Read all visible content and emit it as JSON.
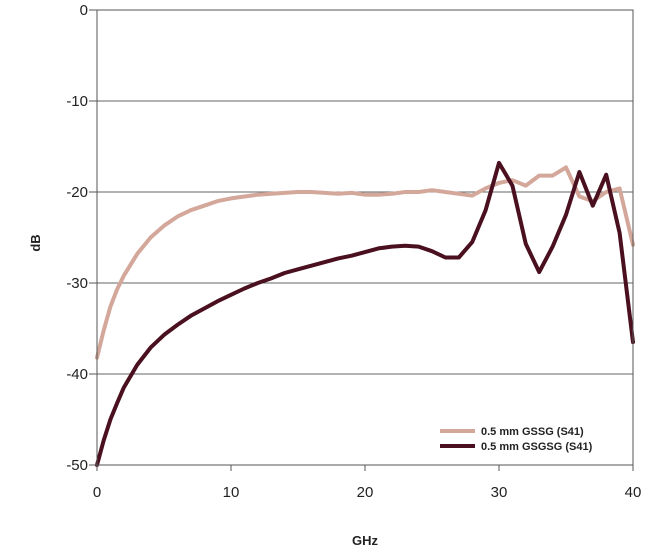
{
  "chart_data": {
    "type": "line",
    "title": "",
    "xlabel": "GHz",
    "ylabel": "dB",
    "xlim": [
      0,
      40
    ],
    "ylim": [
      -50,
      0
    ],
    "xticks": [
      0,
      10,
      20,
      30,
      40
    ],
    "yticks": [
      0,
      -10,
      -20,
      -30,
      -40,
      -50
    ],
    "xtick_labels": [
      "0",
      "10",
      "20",
      "30",
      "40"
    ],
    "ytick_labels": [
      "0",
      "-10",
      "-20",
      "-30",
      "-40",
      "-50"
    ],
    "grid": "horizontal",
    "legend_position": "bottom-right",
    "series": [
      {
        "name": "0.5 mm GSSG (S41)",
        "color": "#d4a79b",
        "x": [
          0,
          0.5,
          1,
          1.5,
          2,
          3,
          4,
          5,
          6,
          7,
          8,
          9,
          10,
          11,
          12,
          13,
          14,
          15,
          16,
          17,
          18,
          19,
          20,
          21,
          22,
          23,
          24,
          25,
          26,
          27,
          28,
          29,
          30,
          31,
          32,
          33,
          34,
          35,
          36,
          37,
          38,
          39,
          40
        ],
        "y": [
          -38.2,
          -35.2,
          -32.6,
          -30.7,
          -29.2,
          -26.8,
          -25.0,
          -23.7,
          -22.7,
          -22.0,
          -21.5,
          -21.0,
          -20.7,
          -20.5,
          -20.3,
          -20.2,
          -20.1,
          -20.0,
          -20.0,
          -20.1,
          -20.2,
          -20.1,
          -20.3,
          -20.3,
          -20.2,
          -20.0,
          -20.0,
          -19.8,
          -20.0,
          -20.2,
          -20.4,
          -19.6,
          -19.0,
          -18.7,
          -19.3,
          -18.2,
          -18.2,
          -17.3,
          -20.5,
          -21.0,
          -20.0,
          -19.6,
          -25.8
        ]
      },
      {
        "name": "0.5 mm GSGSG (S41)",
        "color": "#4a1020",
        "x": [
          0,
          0.5,
          1,
          1.5,
          2,
          3,
          4,
          5,
          6,
          7,
          8,
          9,
          10,
          11,
          12,
          13,
          14,
          15,
          16,
          17,
          18,
          19,
          20,
          21,
          22,
          23,
          24,
          25,
          26,
          27,
          28,
          29,
          30,
          31,
          32,
          33,
          34,
          35,
          36,
          37,
          38,
          39,
          40
        ],
        "y": [
          -50.0,
          -47.3,
          -45.0,
          -43.2,
          -41.5,
          -39.0,
          -37.1,
          -35.7,
          -34.6,
          -33.6,
          -32.8,
          -32.0,
          -31.3,
          -30.6,
          -30.0,
          -29.5,
          -28.9,
          -28.5,
          -28.1,
          -27.7,
          -27.3,
          -27.0,
          -26.6,
          -26.2,
          -26.0,
          -25.9,
          -26.0,
          -26.5,
          -27.2,
          -27.2,
          -25.5,
          -22.0,
          -16.8,
          -19.3,
          -25.7,
          -28.8,
          -26.0,
          -22.5,
          -17.8,
          -21.5,
          -18.1,
          -24.5,
          -36.5
        ]
      }
    ]
  }
}
